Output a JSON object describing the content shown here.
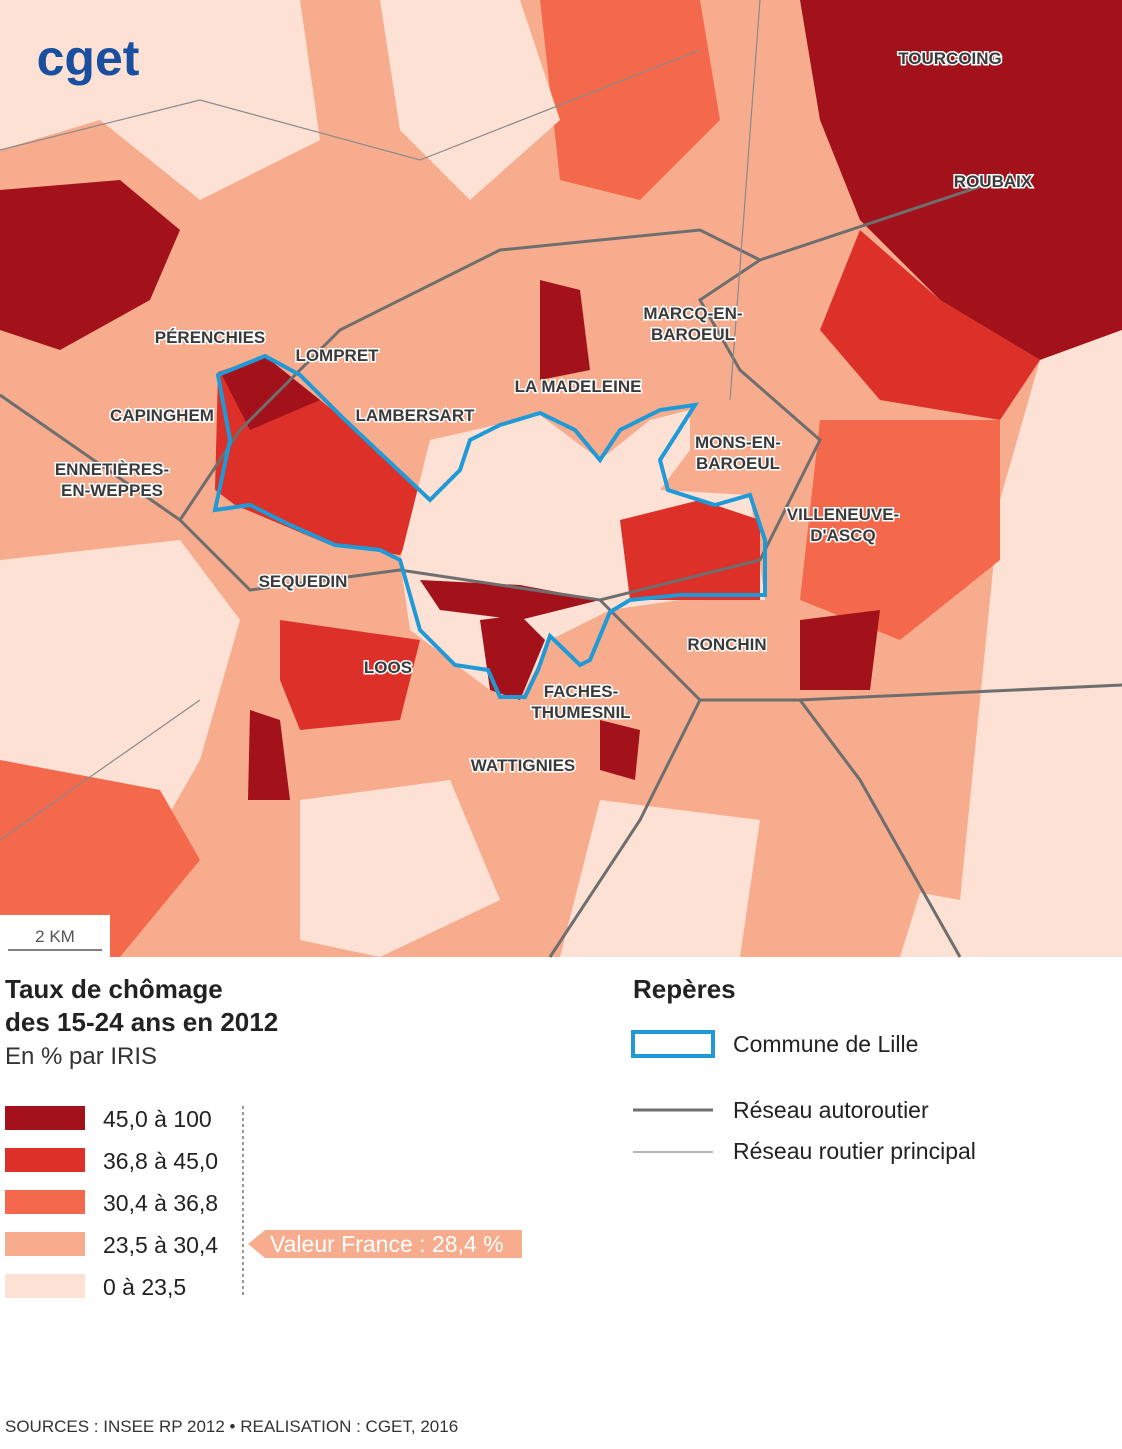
{
  "logo": "cget",
  "map": {
    "places": [
      [
        "TOURCOING"
      ],
      [
        "ROUBAIX"
      ],
      [
        "PÉRENCHIES"
      ],
      [
        "LOMPRET"
      ],
      [
        "MARCQ-EN-",
        "BAROEUL"
      ],
      [
        "CAPINGHEM"
      ],
      [
        "LA MADELEINE"
      ],
      [
        "LAMBERSART"
      ],
      [
        "MONS-EN-",
        "BAROEUL"
      ],
      [
        "ENNETIÈRES-",
        "EN-WEPPES"
      ],
      [
        "VILLENEUVE-",
        "D'ASCQ"
      ],
      [
        "SEQUEDIN"
      ],
      [
        "RONCHIN"
      ],
      [
        "LOOS"
      ],
      [
        "FACHES-",
        "THUMESNIL"
      ],
      [
        "WATTIGNIES"
      ]
    ],
    "scale": "2 KM"
  },
  "legend": {
    "title": [
      "Taux de chômage",
      "des 15-24 ans en 2012"
    ],
    "subtitle": "En % par IRIS",
    "classes": [
      {
        "label": "45,0 à 100",
        "color": "#a3111b"
      },
      {
        "label": "36,8 à 45,0",
        "color": "#dc3029"
      },
      {
        "label": "30,4 à 36,8",
        "color": "#f4694c"
      },
      {
        "label": "23,5 à 30,4",
        "color": "#f8ac8e"
      },
      {
        "label": "0 à 23,5",
        "color": "#fde1d5"
      }
    ],
    "reference": "Valeur France : 28,4 %"
  },
  "landmarks": {
    "title": "Repères",
    "items": [
      "Commune de Lille",
      "Réseau autoroutier",
      "Réseau routier principal"
    ]
  },
  "sources": "SOURCES : INSEE RP 2012 • REALISATION : CGET, 2016"
}
